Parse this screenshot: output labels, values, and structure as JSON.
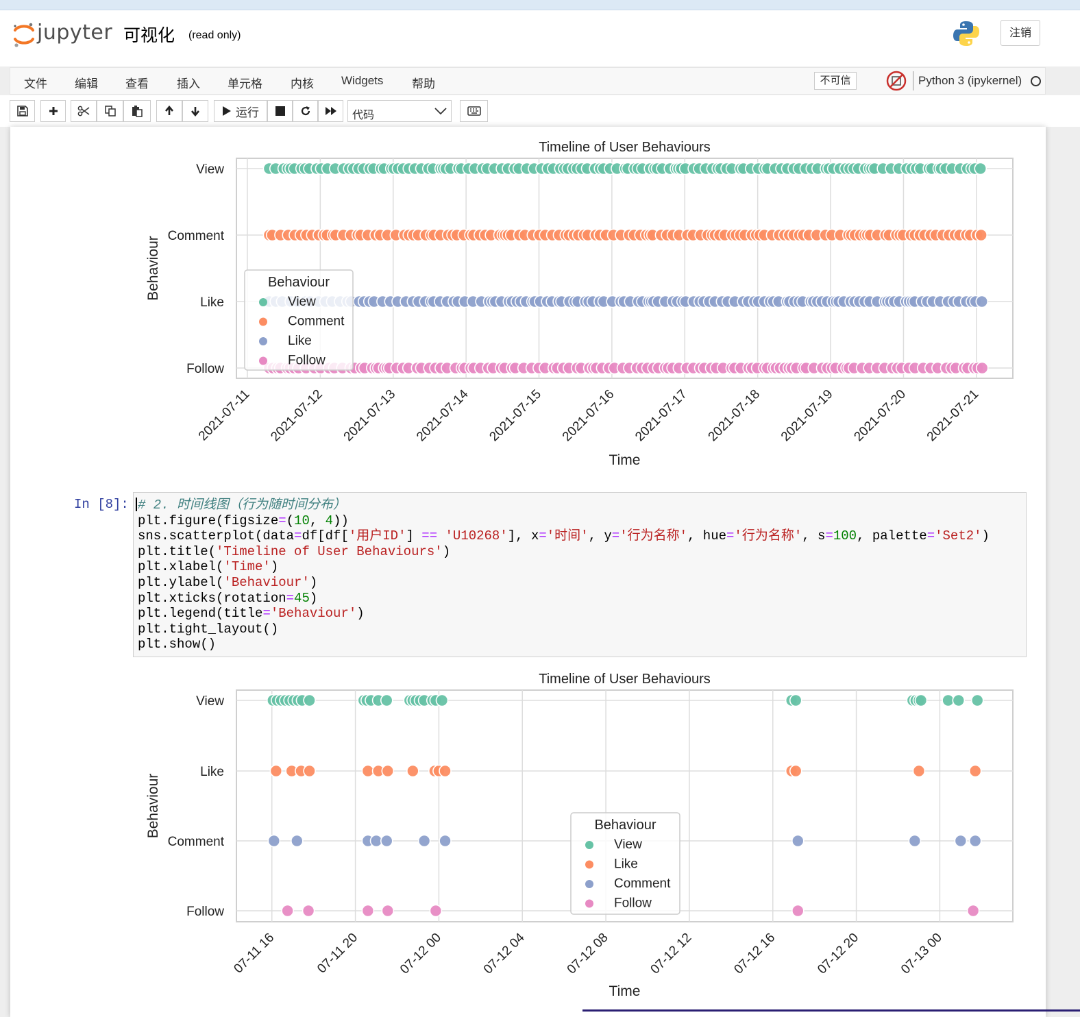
{
  "header": {
    "logo_text": "jupyter",
    "notebook_title": "可视化",
    "read_only": "(read only)",
    "logout_label": "注销"
  },
  "menu": {
    "items": [
      "文件",
      "编辑",
      "查看",
      "插入",
      "单元格",
      "内核",
      "Widgets",
      "帮助"
    ],
    "untrusted": "不可信",
    "kernel_name": "Python 3 (ipykernel)"
  },
  "toolbar": {
    "run_label": "运行",
    "cell_type": "代码"
  },
  "cell": {
    "prompt": "In [8]:",
    "code": [
      "# 2. 时间线图（行为随时间分布）",
      "plt.figure(figsize=(10, 4))",
      "sns.scatterplot(data=df[df['用户ID'] == 'U10268'], x='时间', y='行为名称', hue='行为名称', s=100, palette='Set2')",
      "plt.title('Timeline of User Behaviours')",
      "plt.xlabel('Time')",
      "plt.ylabel('Behaviour')",
      "plt.xticks(rotation=45)",
      "plt.legend(title='Behaviour')",
      "plt.tight_layout()",
      "plt.show()"
    ]
  },
  "colors": {
    "view": "#66c2a5",
    "comment": "#fc8d62",
    "like": "#8da0cb",
    "follow": "#e78ac3",
    "prompt": "#303f9f"
  },
  "chart_data": [
    {
      "type": "scatter",
      "title": "Timeline of User Behaviours",
      "xlabel": "Time",
      "ylabel": "Behaviour",
      "categories_y": [
        "View",
        "Comment",
        "Like",
        "Follow"
      ],
      "xticks": [
        "2021-07-11",
        "2021-07-12",
        "2021-07-13",
        "2021-07-14",
        "2021-07-15",
        "2021-07-16",
        "2021-07-17",
        "2021-07-18",
        "2021-07-19",
        "2021-07-20",
        "2021-07-21"
      ],
      "xlim_days": [
        -0.15,
        10.5
      ],
      "x_range_days": [
        0.3,
        10.1
      ],
      "legend_title": "Behaviour",
      "legend_position": "center-left",
      "legend": [
        "View",
        "Comment",
        "Like",
        "Follow"
      ],
      "point_density": "dense continuous",
      "series": [
        {
          "name": "View",
          "color": "#66c2a5",
          "seed": 11
        },
        {
          "name": "Comment",
          "color": "#fc8d62",
          "seed": 23
        },
        {
          "name": "Like",
          "color": "#8da0cb",
          "seed": 37
        },
        {
          "name": "Follow",
          "color": "#e78ac3",
          "seed": 51
        }
      ]
    },
    {
      "type": "scatter",
      "title": "Timeline of User Behaviours",
      "xlabel": "Time",
      "ylabel": "Behaviour",
      "categories_y": [
        "View",
        "Like",
        "Comment",
        "Follow"
      ],
      "xticks": [
        "07-11 16",
        "07-11 20",
        "07-12 00",
        "07-12 04",
        "07-12 08",
        "07-12 12",
        "07-12 16",
        "07-12 20",
        "07-13 00"
      ],
      "xlim_hours": [
        -1.7,
        35.5
      ],
      "legend_title": "Behaviour",
      "legend_position": "lower-center",
      "legend": [
        "View",
        "Like",
        "Comment",
        "Follow"
      ],
      "series": [
        {
          "name": "View",
          "color": "#66c2a5",
          "hours": [
            0.05,
            0.25,
            0.45,
            0.65,
            0.85,
            1.05,
            1.25,
            1.45,
            1.8,
            4.4,
            4.55,
            4.75,
            5.1,
            5.5,
            6.6,
            6.75,
            6.9,
            7.1,
            7.3,
            7.7,
            7.85,
            8.15,
            24.9,
            25.1,
            30.7,
            30.85,
            31.0,
            31.1,
            32.4,
            32.9,
            33.8
          ]
        },
        {
          "name": "Like",
          "color": "#fc8d62",
          "hours": [
            0.2,
            0.95,
            1.4,
            1.8,
            4.6,
            5.1,
            5.55,
            6.75,
            7.8,
            8.0,
            8.3,
            24.9,
            25.1,
            31.0,
            33.7
          ]
        },
        {
          "name": "Comment",
          "color": "#8da0cb",
          "hours": [
            0.1,
            1.2,
            4.6,
            5.0,
            5.5,
            7.3,
            8.3,
            25.2,
            30.8,
            33.0,
            33.7
          ]
        },
        {
          "name": "Follow",
          "color": "#e78ac3",
          "hours": [
            0.75,
            1.75,
            4.6,
            5.55,
            7.85,
            25.2,
            33.6
          ]
        }
      ]
    }
  ]
}
